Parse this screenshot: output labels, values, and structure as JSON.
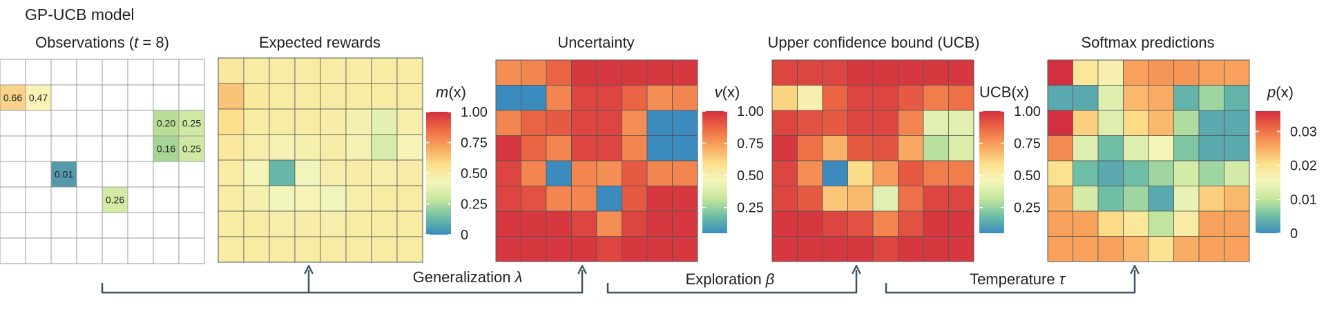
{
  "title": "GP-UCB model",
  "panels": {
    "observations": {
      "title": "Observations (t = 8)",
      "title_parts": [
        "Observations (",
        "t",
        " = 8)"
      ],
      "grid_size": 8,
      "cells": [
        {
          "row": 1,
          "col": 0,
          "value": "0.66",
          "color": "#f9d38a"
        },
        {
          "row": 1,
          "col": 1,
          "value": "0.47",
          "color": "#fbf3b6"
        },
        {
          "row": 2,
          "col": 6,
          "value": "0.20",
          "color": "#b8de96"
        },
        {
          "row": 2,
          "col": 7,
          "value": "0.25",
          "color": "#cfe8a3"
        },
        {
          "row": 3,
          "col": 6,
          "value": "0.16",
          "color": "#a6d596"
        },
        {
          "row": 3,
          "col": 7,
          "value": "0.25",
          "color": "#cfe8a3"
        },
        {
          "row": 4,
          "col": 2,
          "value": "0.01",
          "color": "#5599ad"
        },
        {
          "row": 5,
          "col": 4,
          "value": "0.26",
          "color": "#d4eaa5"
        }
      ]
    },
    "expected_rewards": {
      "title": "Expected rewards",
      "matrix": [
        [
          0.52,
          0.5,
          0.5,
          0.5,
          0.5,
          0.5,
          0.5,
          0.5
        ],
        [
          0.64,
          0.52,
          0.5,
          0.5,
          0.5,
          0.5,
          0.5,
          0.5
        ],
        [
          0.57,
          0.5,
          0.5,
          0.5,
          0.49,
          0.47,
          0.38,
          0.48
        ],
        [
          0.52,
          0.48,
          0.46,
          0.47,
          0.49,
          0.46,
          0.34,
          0.45
        ],
        [
          0.5,
          0.44,
          0.12,
          0.42,
          0.48,
          0.49,
          0.48,
          0.49
        ],
        [
          0.5,
          0.47,
          0.42,
          0.45,
          0.42,
          0.48,
          0.5,
          0.5
        ],
        [
          0.5,
          0.5,
          0.48,
          0.49,
          0.48,
          0.5,
          0.5,
          0.5
        ],
        [
          0.5,
          0.5,
          0.5,
          0.5,
          0.5,
          0.5,
          0.5,
          0.5
        ]
      ],
      "colorbar": {
        "label": "m(x)",
        "label_var": "m",
        "label_rest": "(x)",
        "ticks": [
          "1.00",
          "0.75",
          "0.50",
          "0.25",
          "0"
        ],
        "tick_values": [
          1,
          0.75,
          0.5,
          0.25,
          0
        ],
        "range": [
          0,
          1
        ]
      }
    },
    "uncertainty": {
      "title": "Uncertainty",
      "matrix": [
        [
          0.78,
          0.8,
          0.88,
          0.98,
          0.98,
          0.98,
          0.98,
          0.98
        ],
        [
          0.05,
          0.05,
          0.8,
          0.95,
          0.95,
          0.88,
          0.78,
          0.8
        ],
        [
          0.8,
          0.88,
          0.9,
          0.95,
          0.95,
          0.78,
          0.05,
          0.05
        ],
        [
          0.98,
          0.88,
          0.8,
          0.95,
          0.95,
          0.8,
          0.05,
          0.05
        ],
        [
          0.95,
          0.8,
          0.05,
          0.8,
          0.78,
          0.9,
          0.8,
          0.8
        ],
        [
          0.95,
          0.92,
          0.8,
          0.8,
          0.05,
          0.9,
          0.98,
          0.98
        ],
        [
          0.98,
          0.98,
          0.98,
          0.95,
          0.78,
          0.95,
          0.98,
          0.98
        ],
        [
          0.98,
          0.98,
          0.98,
          0.98,
          0.95,
          0.98,
          0.98,
          0.98
        ]
      ],
      "colorbar": {
        "label": "v(x)",
        "label_var": "v",
        "label_rest": "(x)",
        "ticks": [
          "1.00",
          "0.75",
          "0.50",
          "0.25"
        ],
        "tick_values": [
          1,
          0.75,
          0.5,
          0.25
        ],
        "range": [
          0.05,
          1
        ]
      }
    },
    "ucb": {
      "title": "Upper confidence bound (UCB)",
      "matrix": [
        [
          0.95,
          0.95,
          0.95,
          0.98,
          0.98,
          0.98,
          0.98,
          0.98
        ],
        [
          0.62,
          0.5,
          0.88,
          0.95,
          0.95,
          0.9,
          0.82,
          0.85
        ],
        [
          0.95,
          0.92,
          0.9,
          0.95,
          0.95,
          0.8,
          0.4,
          0.4
        ],
        [
          0.98,
          0.85,
          0.7,
          0.9,
          0.92,
          0.72,
          0.3,
          0.38
        ],
        [
          0.95,
          0.78,
          0.05,
          0.6,
          0.75,
          0.9,
          0.82,
          0.82
        ],
        [
          0.95,
          0.9,
          0.65,
          0.68,
          0.4,
          0.85,
          0.95,
          0.95
        ],
        [
          0.98,
          0.98,
          0.95,
          0.92,
          0.8,
          0.92,
          0.98,
          0.98
        ],
        [
          0.98,
          0.98,
          0.98,
          0.98,
          0.95,
          0.98,
          0.98,
          0.98
        ]
      ],
      "colorbar": {
        "label": "UCB(x)",
        "label_var": "",
        "label_rest": "UCB(x)",
        "ticks": [
          "1.00",
          "0.75",
          "0.50",
          "0.25"
        ],
        "tick_values": [
          1,
          0.75,
          0.5,
          0.25
        ],
        "range": [
          0.05,
          1
        ]
      }
    },
    "softmax": {
      "title": "Softmax predictions",
      "matrix": [
        [
          0.036,
          0.019,
          0.017,
          0.026,
          0.027,
          0.027,
          0.026,
          0.026
        ],
        [
          0.003,
          0.003,
          0.013,
          0.024,
          0.025,
          0.004,
          0.008,
          0.004
        ],
        [
          0.036,
          0.022,
          0.013,
          0.021,
          0.024,
          0.009,
          0.003,
          0.003
        ],
        [
          0.028,
          0.013,
          0.005,
          0.013,
          0.016,
          0.006,
          0.003,
          0.003
        ],
        [
          0.02,
          0.005,
          0.003,
          0.005,
          0.008,
          0.012,
          0.008,
          0.012
        ],
        [
          0.025,
          0.012,
          0.005,
          0.008,
          0.003,
          0.014,
          0.022,
          0.024
        ],
        [
          0.026,
          0.026,
          0.021,
          0.019,
          0.01,
          0.018,
          0.026,
          0.026
        ],
        [
          0.026,
          0.026,
          0.026,
          0.024,
          0.02,
          0.025,
          0.026,
          0.026
        ]
      ],
      "colorbar": {
        "label": "p(x)",
        "label_var": "p",
        "label_rest": "(x)",
        "ticks": [
          "0.03",
          "0.02",
          "0.01",
          "0"
        ],
        "tick_values": [
          0.03,
          0.02,
          0.01,
          0
        ],
        "range": [
          0,
          0.036
        ]
      }
    }
  },
  "arrows": [
    {
      "label": "Generalization λ",
      "text": "Generalization ",
      "symbol": "λ"
    },
    {
      "label": "Exploration β",
      "text": "Exploration ",
      "symbol": "β"
    },
    {
      "label": "Temperature τ",
      "text": "Temperature ",
      "symbol": "τ"
    }
  ],
  "colors": {
    "arrow": "#3f5266",
    "grid_line": "#555555",
    "empty_grid_line": "#9a9a9a",
    "colormap": [
      "#3b8bbf",
      "#6fbfa4",
      "#c6e69e",
      "#f4f6bd",
      "#fce08b",
      "#f8a45d",
      "#ed6a44",
      "#d32f3f"
    ]
  }
}
